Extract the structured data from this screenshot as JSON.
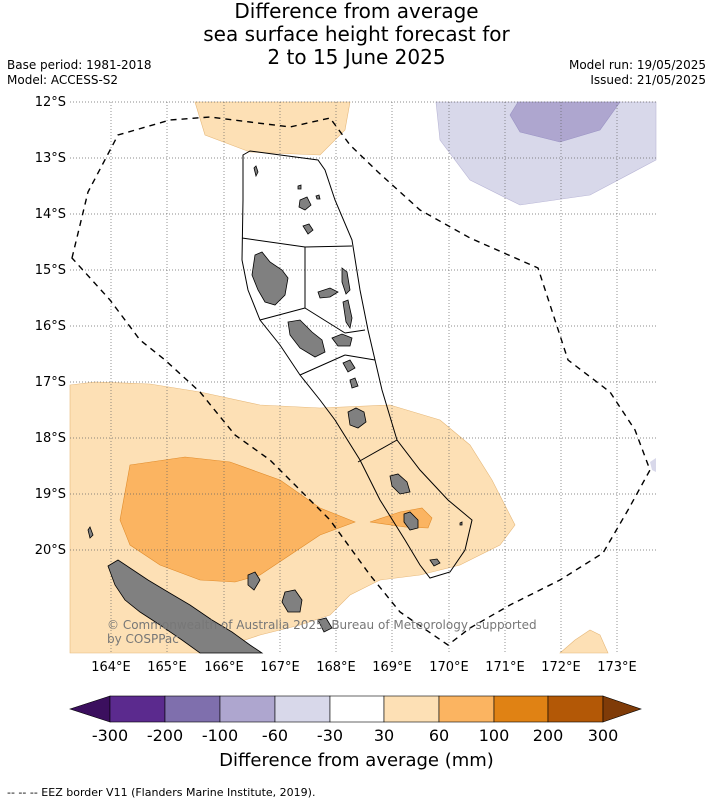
{
  "title": {
    "line1": "Difference from average",
    "line2": "sea surface height forecast for",
    "line3": "2 to 15 June 2025"
  },
  "meta_left": {
    "base_period": "Base period: 1981-2018",
    "model": "Model: ACCESS-S2"
  },
  "meta_right": {
    "model_run": "Model run: 19/05/2025",
    "issued": "Issued: 21/05/2025"
  },
  "map": {
    "latitude_labels": [
      "12°S",
      "13°S",
      "14°S",
      "15°S",
      "16°S",
      "17°S",
      "18°S",
      "19°S",
      "20°S"
    ],
    "longitude_labels": [
      "164°E",
      "165°E",
      "166°E",
      "167°E",
      "168°E",
      "169°E",
      "170°E",
      "171°E",
      "172°E",
      "173°E"
    ],
    "lon_range": [
      163.3,
      173.7
    ],
    "lat_range": [
      -21.9,
      -12.0
    ],
    "copyright_line1": "© Commonwealth of Australia 2025, Bureau of Meteorology, supported",
    "copyright_line2": "by COSPPac"
  },
  "colorbar": {
    "tick_labels": [
      "-300",
      "-200",
      "-100",
      "-60",
      "-30",
      "30",
      "60",
      "100",
      "200",
      "300"
    ],
    "colors": [
      "#3b0f5e",
      "#5b2a8e",
      "#7f6fad",
      "#aea6cf",
      "#d8d8ea",
      "#ffffff",
      "#fde0b5",
      "#fbb461",
      "#e08214",
      "#b35806",
      "#7f3b08"
    ],
    "title": "Difference from average (mm)"
  },
  "footer": "--  --  -- EEZ border V11 (Flanders Marine Institute, 2019)."
}
